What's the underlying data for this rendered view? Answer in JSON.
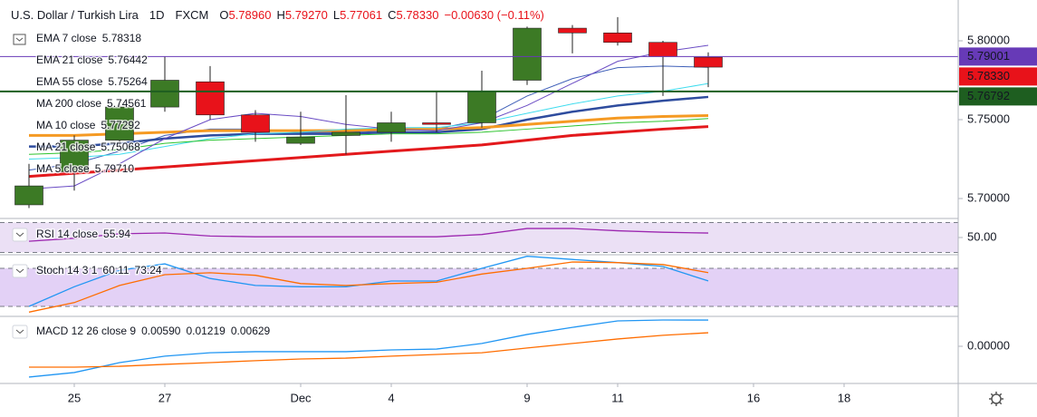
{
  "chart_data": [
    {
      "type": "candlestick",
      "title": "U.S. Dollar / Turkish Lira",
      "interval": "1D",
      "source": "FXCM",
      "ohlc": [
        {
          "key": "O",
          "label": "5.78960"
        },
        {
          "key": "H",
          "label": "5.79270"
        },
        {
          "key": "L",
          "label": "5.77061"
        },
        {
          "key": "C",
          "label": "5.78330"
        }
      ],
      "change_label": "−0.00630 (−0.11%)",
      "x": [
        0,
        1,
        2,
        3,
        4,
        5,
        6,
        7,
        8,
        9,
        10,
        11,
        12,
        13,
        14,
        15
      ],
      "open": [
        5.696,
        5.717,
        5.737,
        5.758,
        5.774,
        5.753,
        5.735,
        5.74,
        5.742,
        5.748,
        5.748,
        5.775,
        5.808,
        5.805,
        5.799,
        5.7896
      ],
      "high": [
        5.722,
        5.74,
        5.762,
        5.79,
        5.784,
        5.756,
        5.755,
        5.7655,
        5.755,
        5.768,
        5.781,
        5.809,
        5.81,
        5.815,
        5.8,
        5.7927
      ],
      "low": [
        5.694,
        5.705,
        5.733,
        5.755,
        5.75,
        5.736,
        5.734,
        5.728,
        5.736,
        5.742,
        5.745,
        5.772,
        5.792,
        5.797,
        5.765,
        5.77061
      ],
      "close": [
        5.708,
        5.737,
        5.758,
        5.775,
        5.753,
        5.742,
        5.739,
        5.742,
        5.748,
        5.747,
        5.768,
        5.808,
        5.805,
        5.799,
        5.79,
        5.7833
      ],
      "up_color": "#3c7a25",
      "down_color": "#e8121a",
      "series": [
        {
          "name": "EMA 7 close",
          "color": "#3f5fb8",
          "line_width": 1,
          "value_label": "5.78318",
          "values": [
            5.718,
            5.722,
            5.73,
            5.74,
            5.744,
            5.744,
            5.742,
            5.742,
            5.743,
            5.744,
            5.75,
            5.765,
            5.776,
            5.783,
            5.784,
            5.7832
          ]
        },
        {
          "name": "EMA 21 close",
          "color": "#2e4c9e",
          "line_width": 2.5,
          "value_label": "5.76442",
          "values": [
            5.733,
            5.733,
            5.735,
            5.738,
            5.74,
            5.741,
            5.741,
            5.741,
            5.742,
            5.742,
            5.744,
            5.75,
            5.755,
            5.759,
            5.762,
            5.7644
          ]
        },
        {
          "name": "EMA 55 close",
          "color": "#f59a23",
          "line_width": 3,
          "value_label": "5.75264",
          "values": [
            5.74,
            5.74,
            5.741,
            5.742,
            5.743,
            5.743,
            5.743,
            5.743,
            5.744,
            5.744,
            5.745,
            5.747,
            5.749,
            5.751,
            5.752,
            5.7526
          ]
        },
        {
          "name": "MA 200 close",
          "color": "#e3191c",
          "line_width": 3,
          "value_label": "5.74561",
          "values": [
            5.714,
            5.716,
            5.718,
            5.72,
            5.722,
            5.724,
            5.726,
            5.728,
            5.73,
            5.732,
            5.734,
            5.737,
            5.74,
            5.742,
            5.744,
            5.7456
          ]
        },
        {
          "name": "MA 10 close",
          "color": "#3fdcee",
          "line_width": 1,
          "value_label": "5.77292",
          "values": [
            5.725,
            5.726,
            5.728,
            5.733,
            5.738,
            5.741,
            5.742,
            5.744,
            5.745,
            5.745,
            5.748,
            5.754,
            5.76,
            5.765,
            5.768,
            5.7729
          ]
        },
        {
          "name": "MA 21 close",
          "color": "#2ec42e",
          "line_width": 1,
          "value_label": "5.75068",
          "values": [
            5.728,
            5.729,
            5.731,
            5.735,
            5.737,
            5.738,
            5.739,
            5.74,
            5.741,
            5.741,
            5.742,
            5.744,
            5.746,
            5.748,
            5.749,
            5.7507
          ]
        },
        {
          "name": "MA 5 close",
          "color": "#6a4cc4",
          "line_width": 1,
          "value_label": "5.79710",
          "values": [
            5.706,
            5.708,
            5.722,
            5.738,
            5.75,
            5.754,
            5.752,
            5.747,
            5.744,
            5.743,
            5.748,
            5.759,
            5.773,
            5.787,
            5.793,
            5.7971
          ]
        }
      ],
      "price_lines": [
        {
          "value": 5.79001,
          "label": "5.79001",
          "color": "#673ab7"
        },
        {
          "value": 5.76792,
          "label": "5.76792",
          "color": "#1e5e20"
        }
      ],
      "last_price": {
        "value": 5.7833,
        "label": "5.78330",
        "color": "#e8121a"
      },
      "xlim": [
        -0.64,
        20.52
      ],
      "xticks": [
        {
          "value": 1,
          "label": "25"
        },
        {
          "value": 3,
          "label": "27"
        },
        {
          "value": 6,
          "label": "Dec"
        },
        {
          "value": 8,
          "label": "4"
        },
        {
          "value": 11,
          "label": "9"
        },
        {
          "value": 13,
          "label": "11"
        },
        {
          "value": 16,
          "label": "16"
        },
        {
          "value": 18,
          "label": "18"
        }
      ],
      "ylim": [
        5.68793,
        5.82586
      ],
      "yticks": [
        {
          "value": 5.8,
          "label": "5.80000"
        },
        {
          "value": 5.75,
          "label": "5.75000"
        },
        {
          "value": 5.7,
          "label": "5.70000"
        }
      ]
    },
    {
      "type": "line",
      "legend_title": "RSI 14 close",
      "x": [
        0,
        1,
        2,
        3,
        4,
        5,
        6,
        7,
        8,
        9,
        10,
        11,
        12,
        13,
        14,
        15
      ],
      "series": [
        {
          "color": "#9c27b0",
          "value_label": "55.94",
          "values": [
            45,
            49,
            55,
            56,
            52,
            51,
            51,
            51,
            51,
            51,
            54,
            62,
            62,
            59,
            57,
            55.94
          ]
        }
      ],
      "band": [
        30,
        70
      ],
      "band_color": "#e6d8f3",
      "ylim": [
        28.2,
        74.2
      ],
      "yticks": [
        {
          "value": 50,
          "label": "50.00"
        }
      ]
    },
    {
      "type": "line",
      "legend_title": "Stoch 14 3 1",
      "x": [
        0,
        1,
        2,
        3,
        4,
        5,
        6,
        7,
        8,
        9,
        10,
        11,
        12,
        13,
        14,
        15
      ],
      "series": [
        {
          "color": "#2196f3",
          "value_label": "60.11",
          "values": [
            20,
            51,
            77,
            87,
            64,
            53,
            51,
            51,
            60,
            60,
            80,
            99,
            94,
            89,
            83,
            60.11
          ]
        },
        {
          "color": "#ff6d00",
          "value_label": "73.24",
          "values": [
            11,
            26,
            53,
            70,
            73,
            69,
            56,
            53,
            56,
            58,
            71,
            80,
            90,
            89,
            86,
            73.24
          ]
        }
      ],
      "band": [
        20,
        80
      ],
      "band_color": "#dcc6f4",
      "ylim": [
        4.3,
        100
      ]
    },
    {
      "type": "line",
      "legend_title": "MACD 12 26 close 9",
      "hist_label": "0.00590",
      "hist_color": "#a6dde0",
      "x": [
        0,
        1,
        2,
        3,
        4,
        5,
        6,
        7,
        8,
        9,
        10,
        11,
        12,
        13,
        14,
        15
      ],
      "series": [
        {
          "color": "#2196f3",
          "value_label": "0.01219",
          "values": [
            -0.0143,
            -0.0122,
            -0.0076,
            -0.0046,
            -0.003,
            -0.0025,
            -0.0025,
            -0.0025,
            -0.0017,
            -0.0013,
            0.0013,
            0.0055,
            0.0088,
            0.0118,
            0.0122,
            0.01219
          ]
        },
        {
          "color": "#ff6d00",
          "value_label": "0.00629",
          "values": [
            -0.0097,
            -0.0097,
            -0.0093,
            -0.0084,
            -0.0076,
            -0.0067,
            -0.0059,
            -0.0055,
            -0.0046,
            -0.0038,
            -0.003,
            -0.0008,
            0.0013,
            0.0034,
            0.0051,
            0.00629
          ]
        }
      ],
      "ylim": [
        -0.01728,
        0.0139
      ],
      "yticks": [
        {
          "value": 0,
          "label": "0.00000"
        }
      ]
    }
  ]
}
